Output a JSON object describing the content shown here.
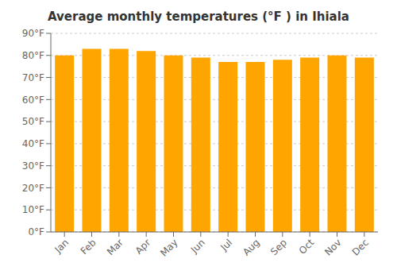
{
  "chart_data": {
    "type": "bar",
    "title": "Average monthly temperatures (°F ) in Ihiala",
    "categories": [
      "Jan",
      "Feb",
      "Mar",
      "Apr",
      "May",
      "Jun",
      "Jul",
      "Aug",
      "Sep",
      "Oct",
      "Nov",
      "Dec"
    ],
    "values": [
      80,
      83,
      83,
      82,
      80,
      79,
      77,
      77,
      78,
      79,
      80,
      79
    ],
    "color": "#FFA500",
    "ylim": [
      0,
      90
    ],
    "yticks": [
      {
        "value": 0,
        "label": "0°F"
      },
      {
        "value": 10,
        "label": "10°F"
      },
      {
        "value": 20,
        "label": "20°F"
      },
      {
        "value": 30,
        "label": "30°F"
      },
      {
        "value": 40,
        "label": "40°F"
      },
      {
        "value": 50,
        "label": "50°F"
      },
      {
        "value": 60,
        "label": "60°F"
      },
      {
        "value": 70,
        "label": "70°F"
      },
      {
        "value": 80,
        "label": "80°F"
      },
      {
        "value": 90,
        "label": "90°F"
      }
    ],
    "grid": true
  }
}
